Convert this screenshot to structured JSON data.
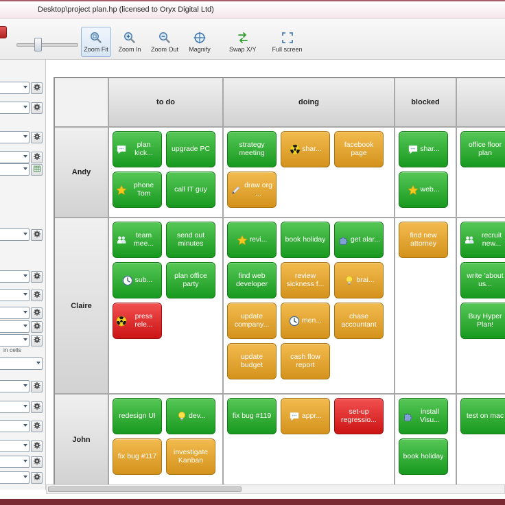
{
  "window": {
    "title": "Desktop\\project plan.hp (licensed to Oryx Digital Ltd)"
  },
  "toolbar": {
    "buttons": [
      {
        "label": "Zoom Fit",
        "icon": "zoom-fit-icon",
        "selected": true
      },
      {
        "label": "Zoom In",
        "icon": "zoom-in-icon",
        "selected": false
      },
      {
        "label": "Zoom Out",
        "icon": "zoom-out-icon",
        "selected": false
      },
      {
        "label": "Magnify",
        "icon": "magnify-icon",
        "selected": false
      },
      {
        "label": "Swap X/Y",
        "icon": "swap-xy-icon",
        "selected": false
      },
      {
        "label": "Full screen",
        "icon": "full-screen-icon",
        "selected": false
      }
    ]
  },
  "sidebar": {
    "in_cells_label": "in cells"
  },
  "colors": {
    "card_green": "#22a022",
    "card_orange": "#e09a28",
    "card_red": "#dd2222",
    "selected_tool": "#d7e5f4"
  },
  "board": {
    "columns": [
      "to do",
      "doing",
      "blocked",
      ""
    ],
    "rows": [
      {
        "name": "Andy",
        "cells": [
          [
            {
              "label": "plan kick...",
              "color": "green",
              "icon": "speech-bubble-icon"
            },
            {
              "label": "upgrade PC",
              "color": "green"
            },
            {
              "label": "phone Tom",
              "color": "green",
              "icon": "star-icon"
            },
            {
              "label": "call IT guy",
              "color": "green"
            }
          ],
          [
            {
              "label": "strategy meeting",
              "color": "green"
            },
            {
              "label": "shar...",
              "color": "orange",
              "icon": "radiation-icon"
            },
            {
              "label": "facebook page",
              "color": "orange"
            },
            {
              "label": "draw org ...",
              "color": "orange",
              "icon": "pencil-icon"
            }
          ],
          [
            {
              "label": "shar...",
              "color": "green",
              "icon": "speech-bubble-icon"
            },
            {
              "label": "web...",
              "color": "green",
              "icon": "star-icon"
            }
          ],
          [
            {
              "label": "office floor plan",
              "color": "green"
            }
          ]
        ]
      },
      {
        "name": "Claire",
        "cells": [
          [
            {
              "label": "team mee...",
              "color": "green",
              "icon": "people-icon"
            },
            {
              "label": "send out minutes",
              "color": "green"
            },
            {
              "label": "sub...",
              "color": "green",
              "icon": "clock-icon"
            },
            {
              "label": "plan office party",
              "color": "green"
            },
            {
              "label": "press rele...",
              "color": "red",
              "icon": "radiation-icon"
            }
          ],
          [
            {
              "label": "revi...",
              "color": "green",
              "icon": "star-icon"
            },
            {
              "label": "book holiday",
              "color": "green"
            },
            {
              "label": "get alar...",
              "color": "green",
              "icon": "puzzle-icon"
            },
            {
              "label": "find web developer",
              "color": "green"
            },
            {
              "label": "review sickness f...",
              "color": "orange"
            },
            {
              "label": "brai...",
              "color": "orange",
              "icon": "bulb-icon"
            },
            {
              "label": "update company...",
              "color": "orange"
            },
            {
              "label": "men...",
              "color": "orange",
              "icon": "clock-icon"
            },
            {
              "label": "chase accountant",
              "color": "orange"
            },
            {
              "label": "update budget",
              "color": "orange"
            },
            {
              "label": "cash flow report",
              "color": "orange"
            }
          ],
          [
            {
              "label": "find new attorney",
              "color": "orange"
            }
          ],
          [
            {
              "label": "recruit new...",
              "color": "green",
              "icon": "people-icon"
            },
            {
              "label": "write 'about us...",
              "color": "green"
            },
            {
              "label": "Buy Hyper Plan!",
              "color": "green"
            }
          ]
        ]
      },
      {
        "name": "John",
        "cells": [
          [
            {
              "label": "redesign UI",
              "color": "green"
            },
            {
              "label": "dev...",
              "color": "green",
              "icon": "bulb-icon"
            },
            {
              "label": "fix bug #117",
              "color": "orange"
            },
            {
              "label": "investigate Kanban",
              "color": "orange"
            }
          ],
          [
            {
              "label": "fix bug #119",
              "color": "green"
            },
            {
              "label": "appr...",
              "color": "orange",
              "icon": "speech-bubble-icon"
            },
            {
              "label": "set-up regressio...",
              "color": "red"
            }
          ],
          [
            {
              "label": "install Visu...",
              "color": "green",
              "icon": "puzzle-icon"
            },
            {
              "label": "book holiday",
              "color": "green"
            }
          ],
          [
            {
              "label": "test on mac",
              "color": "green"
            }
          ]
        ]
      }
    ]
  }
}
